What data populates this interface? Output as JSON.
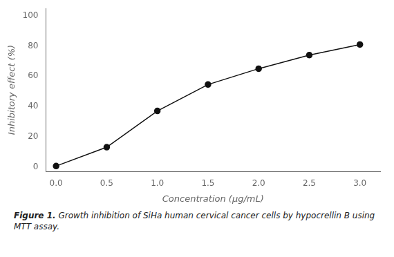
{
  "chart_data": {
    "type": "line",
    "x_label": "Concentration (μg/mL)",
    "y_label": "Inhibitory effect (%)",
    "annotations": [
      "Figure 1.",
      "Growth inhibition of SiHa human cervical cancer cells by hypocrellin B using MTT assay."
    ],
    "x": [
      0.0,
      0.5,
      1.0,
      1.5,
      2.0,
      2.5,
      3.0
    ],
    "values": [
      0.5,
      13.0,
      37.0,
      54.5,
      65.0,
      74.0,
      81.0
    ],
    "errors": [
      0.3,
      0.8,
      1.2,
      1.2,
      1.5,
      1.5,
      1.2
    ],
    "color": "#111111",
    "marker": "circle",
    "line_style": "solid",
    "xlim": [
      -0.1,
      3.2
    ],
    "ylim": [
      -3,
      105
    ],
    "xticks": [
      {
        "value": 0,
        "label": "0.0"
      },
      0.5,
      {
        "value": 1,
        "label": "1.0"
      },
      1.5,
      {
        "value": 2,
        "label": "2.0"
      },
      2.5,
      {
        "value": 3,
        "label": "3.0"
      }
    ],
    "yticks": [
      0,
      20,
      40,
      60,
      80,
      100
    ],
    "grid": false,
    "legend": false
  }
}
